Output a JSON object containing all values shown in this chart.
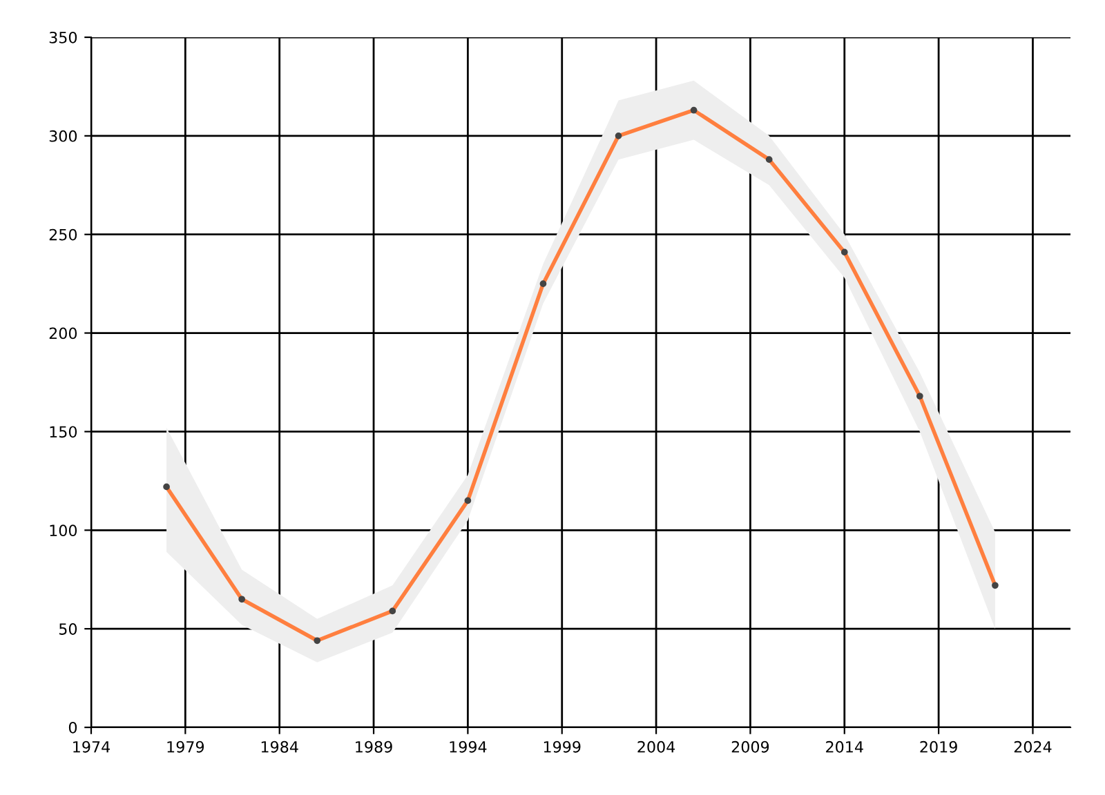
{
  "chart_data": {
    "type": "line",
    "x": [
      1978,
      1982,
      1986,
      1990,
      1994,
      1998,
      2002,
      2006,
      2010,
      2014,
      2018,
      2022
    ],
    "series": [
      {
        "color": "#ff7f3f",
        "values": [
          122,
          65,
          44,
          59,
          115,
          225,
          300,
          313,
          288,
          241,
          168,
          72
        ],
        "lower": [
          89,
          52,
          33,
          48,
          105,
          215,
          288,
          298,
          275,
          228,
          150,
          50
        ],
        "upper": [
          152,
          80,
          55,
          72,
          128,
          235,
          318,
          328,
          300,
          250,
          180,
          99
        ]
      }
    ],
    "xlim": [
      1974,
      2026
    ],
    "xticks": [
      1974,
      1979,
      1984,
      1989,
      1994,
      1999,
      2004,
      2009,
      2014,
      2019,
      2024
    ],
    "ylim": [
      0,
      350
    ],
    "yticks": [
      0,
      50,
      100,
      150,
      200,
      250,
      300,
      350
    ],
    "grid": true,
    "marker": "circle",
    "line_style": "solid"
  }
}
